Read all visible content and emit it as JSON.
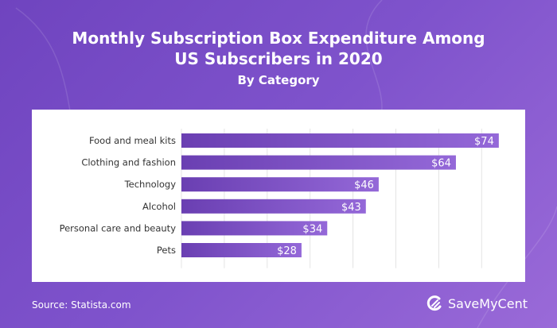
{
  "chart_data": {
    "type": "bar",
    "orientation": "horizontal",
    "title": "Monthly Subscription Box Expenditure Among US Subscribers in 2020",
    "subtitle": "By Category",
    "categories": [
      "Food and meal kits",
      "Clothing and fashion",
      "Technology",
      "Alcohol",
      "Personal care and beauty",
      "Pets"
    ],
    "values": [
      74,
      64,
      46,
      43,
      34,
      28
    ],
    "data_labels": [
      "$74",
      "$64",
      "$46",
      "$43",
      "$34",
      "$28"
    ],
    "xlim": [
      0,
      80
    ],
    "grid": true,
    "bar_color_start": "#6a3fb2",
    "bar_color_end": "#9468d8"
  },
  "header": {
    "title_line1": "Monthly Subscription Box Expenditure Among",
    "title_line2": "US Subscribers in 2020",
    "subtitle": "By Category"
  },
  "footer": {
    "source": "Source: Statista.com",
    "brand": "SaveMyCent"
  }
}
